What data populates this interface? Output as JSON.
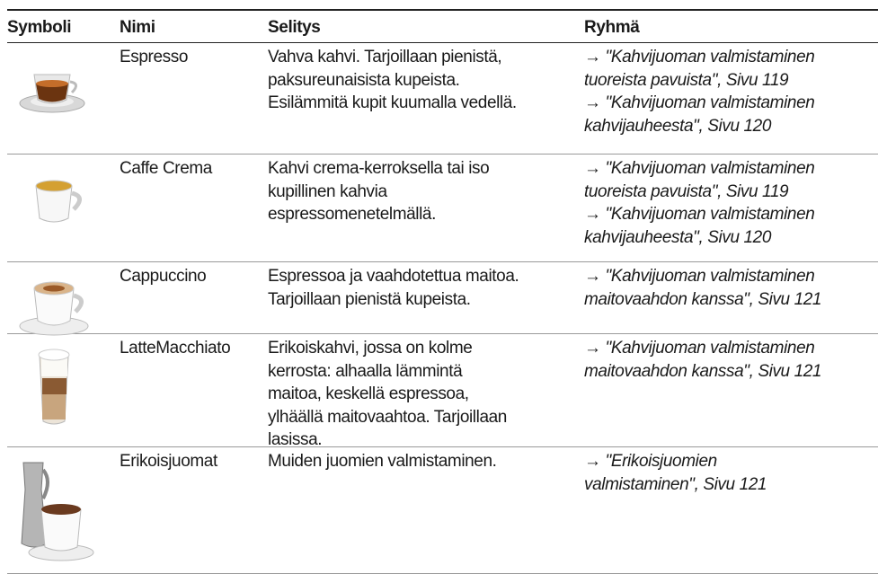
{
  "table": {
    "headers": [
      "Symboli",
      "Nimi",
      "Selitys",
      "Ryhmä"
    ],
    "rows": [
      {
        "name": "Espresso",
        "description": [
          "Vahva kahvi. Tarjoillaan pienistä,",
          "paksureunaisista kupeista.",
          "Esilämmitä kupit kuumalla vedellä."
        ],
        "refs": [
          {
            "arrow": "→",
            "lines": [
              "\"Kahvijuoman valmistaminen",
              "tuoreista pavuista\", Sivu 119"
            ]
          },
          {
            "arrow": "→",
            "lines": [
              "\"Kahvijuoman valmistaminen",
              "kahvijauheesta\", Sivu 120"
            ]
          }
        ]
      },
      {
        "name": "Caffe Crema",
        "description": [
          "Kahvi crema-kerroksella tai iso",
          "kupillinen kahvia",
          "espressomenetelmällä."
        ],
        "refs": [
          {
            "arrow": "→",
            "lines": [
              "\"Kahvijuoman valmistaminen",
              "tuoreista pavuista\", Sivu 119"
            ]
          },
          {
            "arrow": "→",
            "lines": [
              "\"Kahvijuoman valmistaminen",
              "kahvijauheesta\", Sivu 120"
            ]
          }
        ]
      },
      {
        "name": "Cappuccino",
        "description": [
          "Espressoa ja vaahdotettua maitoa.",
          "Tarjoillaan pienistä kupeista."
        ],
        "refs": [
          {
            "arrow": "→",
            "lines": [
              "\"Kahvijuoman valmistaminen",
              "maitovaahdon kanssa\", Sivu 121"
            ]
          }
        ]
      },
      {
        "name": "LatteMacchiato",
        "description": [
          "Erikoiskahvi, jossa on kolme",
          "kerrosta: alhaalla lämmintä",
          "maitoa, keskellä espressoa,",
          "ylhäällä maitovaahtoa. Tarjoillaan",
          "lasissa."
        ],
        "refs": [
          {
            "arrow": "→",
            "lines": [
              "\"Kahvijuoman valmistaminen",
              "maitovaahdon kanssa\", Sivu 121"
            ]
          }
        ]
      },
      {
        "name": "Erikoisjuomat",
        "description": [
          "Muiden juomien valmistaminen."
        ],
        "refs": [
          {
            "arrow": "→",
            "lines": [
              "\"Erikoisjuomien",
              "valmistaminen\", Sivu 121"
            ]
          }
        ]
      }
    ]
  }
}
